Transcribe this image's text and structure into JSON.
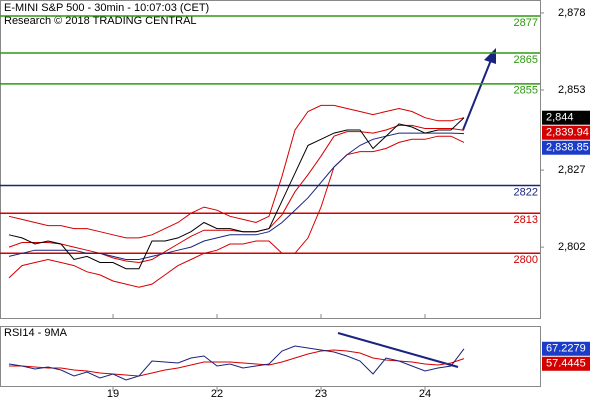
{
  "chart_data": [
    {
      "type": "line",
      "title": "E-MINI S&P 500 - 30min - 10:07:03 (CET)",
      "subtitle": "Research © 2018 TRADING CENTRAL",
      "x": [
        0,
        0.125,
        0.25,
        0.375,
        0.5,
        0.625,
        0.75,
        0.875,
        1,
        1.125,
        1.25,
        1.375,
        1.5,
        1.625,
        1.75,
        1.875,
        2,
        2.125,
        2.25,
        2.375,
        2.5,
        2.625,
        2.75,
        2.875,
        3,
        3.125,
        3.25,
        3.375,
        3.5,
        3.625,
        3.75,
        3.875,
        4,
        4.125,
        4.25,
        4.375
      ],
      "xlim": [
        -0.087,
        5.106
      ],
      "series": [
        {
          "color": "#d40000",
          "values": [
            2812,
            2811,
            2810,
            2809,
            2809,
            2808,
            2808,
            2807,
            2806,
            2805,
            2805,
            2806,
            2808,
            2810,
            2813,
            2815,
            2814,
            2812,
            2811,
            2810,
            2812,
            2825,
            2840,
            2846,
            2848,
            2848,
            2847,
            2846,
            2845,
            2846,
            2847,
            2846,
            2844,
            2843,
            2843,
            2844
          ]
        },
        {
          "color": "#d40000",
          "values": [
            2802,
            2803.5,
            2803.5,
            2803.5,
            2803,
            2802,
            2801,
            2800,
            2798.5,
            2797.5,
            2797,
            2798,
            2800.5,
            2803,
            2805.5,
            2807.5,
            2807.5,
            2807.5,
            2807,
            2807,
            2808,
            2812.5,
            2820,
            2825.5,
            2831.5,
            2838,
            2839.5,
            2839.5,
            2839,
            2840,
            2841.5,
            2841.5,
            2840.5,
            2840.5,
            2840.5,
            2839.94
          ]
        },
        {
          "color": "#d40000",
          "values": [
            2792,
            2796,
            2797,
            2798,
            2797,
            2796,
            2794,
            2793,
            2791,
            2790,
            2789,
            2790,
            2793,
            2796,
            2798,
            2800,
            2801,
            2803,
            2803,
            2804,
            2804,
            2800,
            2800,
            2805,
            2815,
            2828,
            2832,
            2833,
            2833,
            2834,
            2836,
            2837,
            2837,
            2838,
            2838,
            2836
          ]
        },
        {
          "color": "#1a237e",
          "values": [
            2799,
            2800,
            2801,
            2801,
            2801,
            2801,
            2800,
            2800,
            2799,
            2798,
            2798,
            2799,
            2800,
            2801,
            2802,
            2804,
            2805,
            2806,
            2806,
            2806,
            2807,
            2810,
            2814,
            2818,
            2823,
            2828,
            2832,
            2835,
            2837,
            2838,
            2839,
            2839,
            2839,
            2839,
            2839,
            2838.85
          ]
        },
        {
          "color": "#000000",
          "values": [
            2806,
            2805,
            2803,
            2804,
            2803,
            2798,
            2799,
            2797,
            2797,
            2795,
            2795,
            2804,
            2804,
            2805,
            2807,
            2810,
            2808,
            2808,
            2807,
            2807,
            2808,
            2817,
            2826,
            2835,
            2837,
            2839,
            2840,
            2840,
            2834,
            2838,
            2842,
            2841,
            2839,
            2840,
            2840,
            2844
          ]
        }
      ],
      "ylim": [
        2779,
        2882.2
      ],
      "yticks": [
        {
          "value": 2878,
          "label": "2,878"
        },
        {
          "value": 2853,
          "label": "2,853"
        },
        {
          "value": 2827,
          "label": "2,827"
        },
        {
          "value": 2802,
          "label": "2,802"
        }
      ],
      "levels": [
        {
          "value": 2877,
          "color": "#2e9a12"
        },
        {
          "value": 2865,
          "color": "#2e9a12"
        },
        {
          "value": 2855,
          "color": "#2e9a12"
        },
        {
          "value": 2822,
          "color": "#1a237e"
        },
        {
          "value": 2813,
          "color": "#d40000"
        },
        {
          "value": 2800,
          "color": "#d40000"
        }
      ],
      "markers": [
        {
          "value": 2844,
          "label": "2,844",
          "color": "#000000"
        },
        {
          "value": 2839.94,
          "label": "2,839.94",
          "color": "#d40000"
        },
        {
          "value": 2838.85,
          "label": "2,838.85",
          "color": "#1a3cc8"
        }
      ]
    },
    {
      "type": "line",
      "title": "RSI14 - 9MA",
      "x": [
        0,
        0.125,
        0.25,
        0.375,
        0.5,
        0.625,
        0.75,
        0.875,
        1,
        1.125,
        1.25,
        1.375,
        1.5,
        1.625,
        1.75,
        1.875,
        2,
        2.125,
        2.25,
        2.375,
        2.5,
        2.625,
        2.75,
        2.875,
        3,
        3.125,
        3.25,
        3.375,
        3.5,
        3.625,
        3.75,
        3.875,
        4,
        4.125,
        4.25,
        4.375
      ],
      "xlim": [
        -0.087,
        5.106
      ],
      "xticks": [
        {
          "value": 1,
          "label": "19"
        },
        {
          "value": 2,
          "label": "22"
        },
        {
          "value": 3,
          "label": "23"
        },
        {
          "value": 4,
          "label": "24"
        }
      ],
      "ylim": [
        30,
        90
      ],
      "series": [
        {
          "color": "#d40000",
          "values": [
            50,
            50,
            49,
            48,
            48,
            46,
            45,
            43,
            42,
            41,
            40,
            43,
            46,
            48,
            51,
            54,
            54,
            54,
            53,
            52,
            51,
            54,
            58,
            62,
            65,
            66,
            65,
            63,
            58,
            56,
            55,
            54,
            52,
            51,
            53,
            57.4445
          ]
        },
        {
          "color": "#1a237e",
          "values": [
            52,
            50,
            47,
            49,
            46,
            40,
            44,
            38,
            42,
            36,
            40,
            55,
            54,
            53,
            58,
            60,
            50,
            52,
            48,
            50,
            52,
            65,
            70,
            68,
            66,
            64,
            60,
            55,
            42,
            58,
            55,
            50,
            45,
            48,
            50,
            67.2279
          ]
        }
      ],
      "markers": [
        {
          "value": 67.2279,
          "color": "#1a3cc8"
        },
        {
          "value": 57.4445,
          "color": "#d40000"
        }
      ]
    }
  ]
}
